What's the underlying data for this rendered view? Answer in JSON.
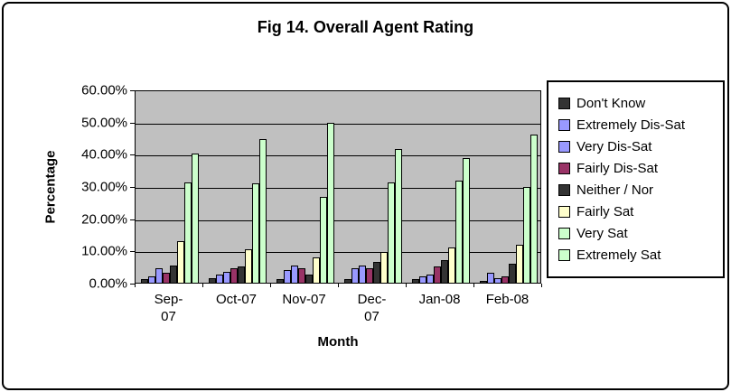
{
  "title": "Fig 14. Overall Agent Rating",
  "chart_data": {
    "type": "bar",
    "title": "Fig 14. Overall Agent Rating",
    "xlabel": "Month",
    "ylabel": "Percentage",
    "ylim_percent": [
      0,
      60
    ],
    "grid": true,
    "plot_bg_color": "#C0C0C0",
    "legend_position": "right",
    "y_tick_labels": [
      "60.00%",
      "50.00%",
      "40.00%",
      "30.00%",
      "20.00%",
      "10.00%",
      "0.00%"
    ],
    "categories": [
      "Sep-07",
      "Oct-07",
      "Nov-07",
      "Dec-07",
      "Jan-08",
      "Feb-08"
    ],
    "category_display_lines": [
      [
        "Sep-",
        "07"
      ],
      [
        "Oct-07"
      ],
      [
        "Nov-07"
      ],
      [
        "Dec-",
        "07"
      ],
      [
        "Jan-08"
      ],
      [
        "Feb-08"
      ]
    ],
    "series": [
      {
        "name": "Don't Know",
        "color": "#333333",
        "values": [
          1.0,
          1.5,
          1.0,
          1.0,
          1.0,
          0.5
        ]
      },
      {
        "name": "Extremely Dis-Sat",
        "color": "#9999FF",
        "values": [
          2.0,
          2.5,
          4.0,
          4.5,
          2.0,
          3.0
        ]
      },
      {
        "name": "Very Dis-Sat",
        "color": "#9999FF",
        "values": [
          4.5,
          3.5,
          5.5,
          5.5,
          2.5,
          1.5
        ]
      },
      {
        "name": "Fairly Dis-Sat",
        "color": "#993366",
        "values": [
          3.0,
          4.5,
          4.5,
          4.5,
          5.0,
          2.0
        ]
      },
      {
        "name": "Neither / Nor",
        "color": "#333333",
        "values": [
          5.5,
          5.0,
          2.5,
          6.5,
          7.0,
          6.0
        ]
      },
      {
        "name": "Fairly Sat",
        "color": "#FFFFCC",
        "values": [
          13.0,
          10.5,
          8.0,
          9.5,
          11.0,
          12.0
        ]
      },
      {
        "name": "Very Sat",
        "color": "#CCFFCC",
        "values": [
          31.5,
          31.0,
          27.0,
          31.5,
          32.0,
          30.0
        ]
      },
      {
        "name": "Extremely Sat",
        "color": "#CCFFCC",
        "values": [
          40.5,
          45.0,
          50.0,
          42.0,
          39.0,
          46.5
        ]
      }
    ]
  }
}
